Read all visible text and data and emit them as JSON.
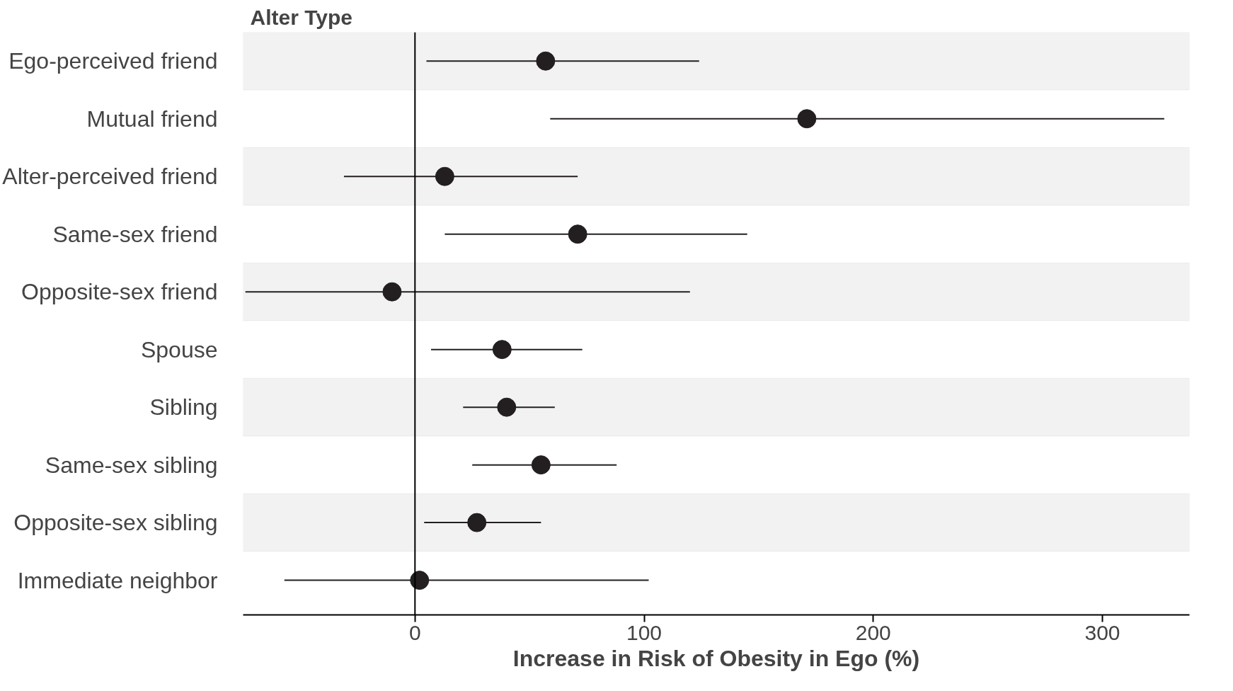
{
  "chart_data": {
    "type": "scatter",
    "orientation": "horizontal",
    "title": "Alter Type",
    "xlabel": "Increase in Risk of Obesity in Ego (%)",
    "categories": [
      "Ego-perceived friend",
      "Mutual friend",
      "Alter-perceived friend",
      "Same-sex friend",
      "Opposite-sex friend",
      "Spouse",
      "Sibling",
      "Same-sex sibling",
      "Opposite-sex sibling",
      "Immediate neighbor"
    ],
    "values": [
      57,
      171,
      13,
      71,
      -10,
      38,
      40,
      55,
      27,
      2
    ],
    "errors": [
      [
        5,
        124
      ],
      [
        59,
        327
      ],
      [
        -31,
        71
      ],
      [
        13,
        145
      ],
      [
        -74,
        120
      ],
      [
        7,
        73
      ],
      [
        21,
        61
      ],
      [
        25,
        88
      ],
      [
        4,
        55
      ],
      [
        -57,
        102
      ]
    ],
    "color": "#231f20",
    "marker": "circle",
    "xlim": [
      -75,
      338
    ],
    "xticks": [
      {
        "value": 0,
        "label": "0"
      },
      {
        "value": 100,
        "label": "100"
      },
      {
        "value": 200,
        "label": "200"
      },
      {
        "value": 300,
        "label": "300"
      }
    ],
    "grid": false,
    "ref_lines": [
      {
        "axis": "x",
        "value": 0,
        "color": "#000000"
      }
    ],
    "bands": [
      {
        "axis": "y",
        "from": "Ego-perceived friend",
        "to": "Ego-perceived friend",
        "color": "#f2f2f2"
      },
      {
        "axis": "y",
        "from": "Alter-perceived friend",
        "to": "Alter-perceived friend",
        "color": "#f2f2f2"
      },
      {
        "axis": "y",
        "from": "Opposite-sex friend",
        "to": "Opposite-sex friend",
        "color": "#f2f2f2"
      },
      {
        "axis": "y",
        "from": "Sibling",
        "to": "Sibling",
        "color": "#f2f2f2"
      },
      {
        "axis": "y",
        "from": "Opposite-sex sibling",
        "to": "Opposite-sex sibling",
        "color": "#f2f2f2"
      }
    ]
  }
}
